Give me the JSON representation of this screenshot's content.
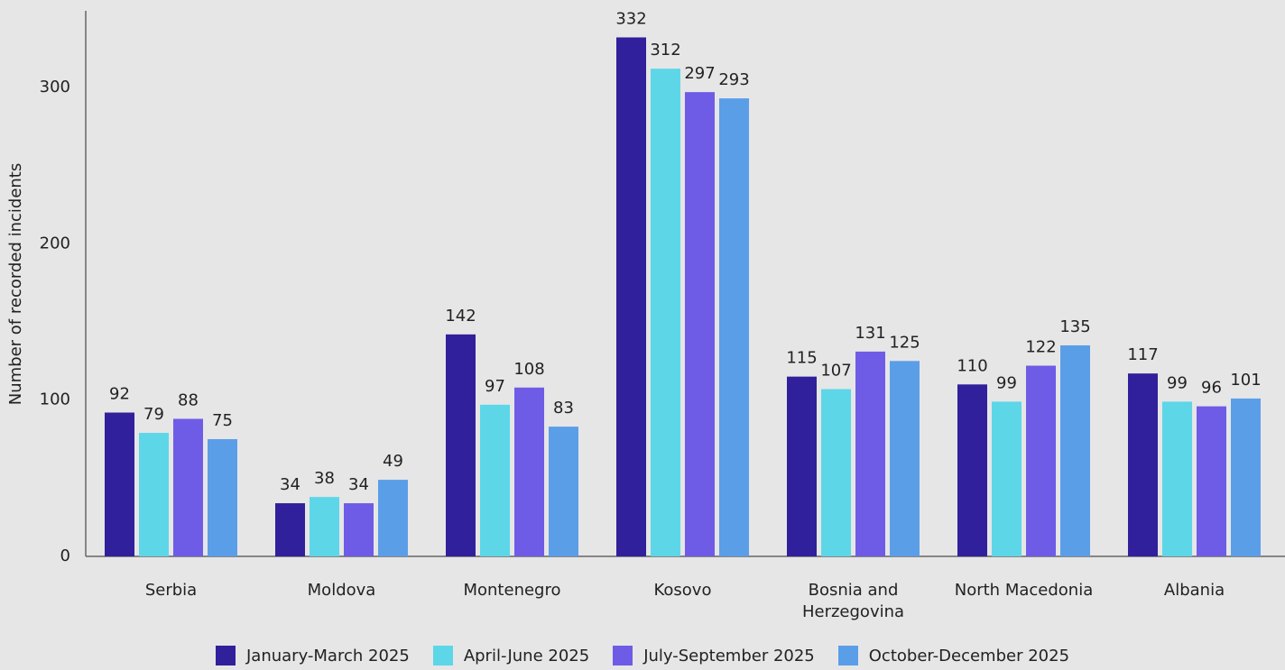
{
  "chart_data": {
    "type": "bar",
    "y_axis_label": "Number of recorded incidents",
    "categories": [
      "Serbia",
      "Moldova",
      "Montenegro",
      "Kosovo",
      "Bosnia and Herzegovina",
      "North Macedonia",
      "Albania"
    ],
    "series": [
      {
        "name": "January-March 2025",
        "color": "#30209b",
        "values": [
          92,
          34,
          142,
          332,
          115,
          110,
          117
        ]
      },
      {
        "name": "April-June 2025",
        "color": "#5dd6e8",
        "values": [
          79,
          38,
          97,
          312,
          107,
          99,
          99
        ]
      },
      {
        "name": "July-September 2025",
        "color": "#6e5ce6",
        "values": [
          88,
          34,
          108,
          297,
          131,
          122,
          96
        ]
      },
      {
        "name": "October-December 2025",
        "color": "#5b9ee8",
        "values": [
          75,
          49,
          83,
          293,
          125,
          135,
          101
        ]
      }
    ],
    "ylim": [
      0,
      349
    ],
    "yticks": [
      0,
      100,
      200,
      300
    ],
    "grid": false
  }
}
